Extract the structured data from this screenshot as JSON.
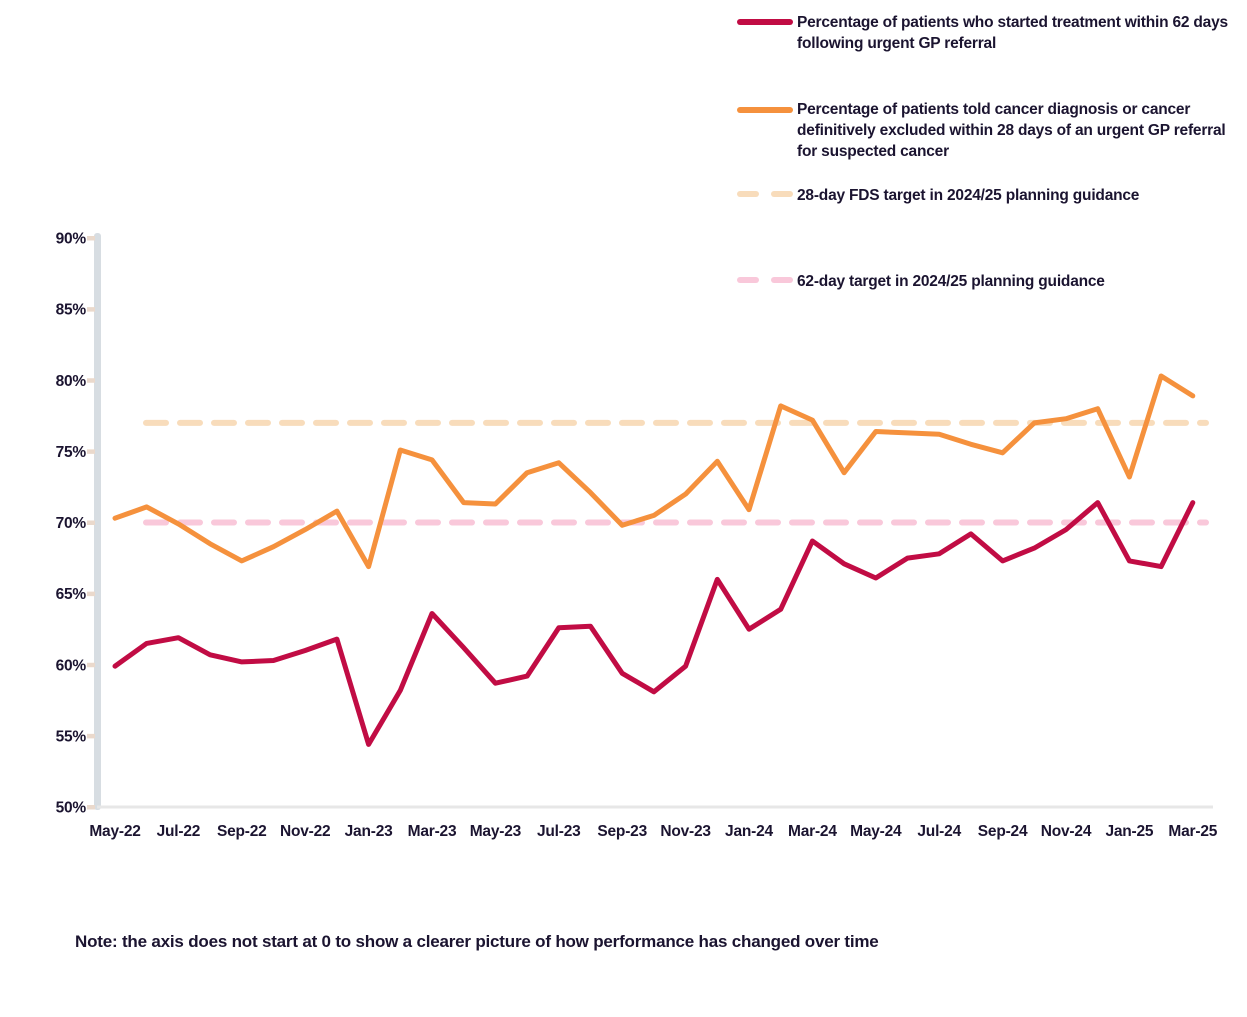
{
  "legend": {
    "items": [
      {
        "label": "Percentage of patients who started treatment within 62 days following urgent GP referral",
        "color": "#c10c44",
        "style": "solid"
      },
      {
        "label": "Percentage of patients told cancer diagnosis or cancer definitively excluded within 28 days of an urgent GP referral for suspected cancer",
        "color": "#f5913d",
        "style": "solid"
      },
      {
        "label": "28-day FDS target in 2024/25 planning guidance",
        "color": "#f8dcbb",
        "style": "dashed"
      },
      {
        "label": "62-day target in 2024/25 planning guidance",
        "color": "#f9c8da",
        "style": "dashed"
      }
    ]
  },
  "note": "Note: the axis does not start at 0 to show a clearer picture of how performance has changed over time",
  "chart_data": {
    "type": "line",
    "x": [
      "May-22",
      "Jun-22",
      "Jul-22",
      "Aug-22",
      "Sep-22",
      "Oct-22",
      "Nov-22",
      "Dec-22",
      "Jan-23",
      "Feb-23",
      "Mar-23",
      "Apr-23",
      "May-23",
      "Jun-23",
      "Jul-23",
      "Aug-23",
      "Sep-23",
      "Oct-23",
      "Nov-23",
      "Dec-23",
      "Jan-24",
      "Feb-24",
      "Mar-24",
      "Apr-24",
      "May-24",
      "Jun-24",
      "Jul-24",
      "Aug-24",
      "Sep-24",
      "Oct-24",
      "Nov-24",
      "Dec-24",
      "Jan-25",
      "Feb-25",
      "Mar-25"
    ],
    "x_tick_labels": [
      "May-22",
      "Jul-22",
      "Sep-22",
      "Nov-22",
      "Jan-23",
      "Mar-23",
      "May-23",
      "Jul-23",
      "Sep-23",
      "Nov-23",
      "Jan-24",
      "Mar-24",
      "May-24",
      "Jul-24",
      "Sep-24",
      "Nov-24",
      "Jan-25",
      "Mar-25"
    ],
    "series": [
      {
        "name": "Percentage of patients who started treatment within 62 days following urgent GP referral",
        "color": "#c10c44",
        "values": [
          59.9,
          61.5,
          61.9,
          60.7,
          60.2,
          60.3,
          61.0,
          61.8,
          54.4,
          58.2,
          63.6,
          61.2,
          58.7,
          59.2,
          62.6,
          62.7,
          59.4,
          58.1,
          59.9,
          66.0,
          62.5,
          63.9,
          68.7,
          67.1,
          66.1,
          67.5,
          67.8,
          69.2,
          67.3,
          68.2,
          69.5,
          71.4,
          67.3,
          66.9,
          71.4
        ]
      },
      {
        "name": "Percentage of patients told cancer diagnosis or cancer definitively excluded within 28 days of an urgent GP referral for suspected cancer",
        "color": "#f5913d",
        "values": [
          70.3,
          71.1,
          69.9,
          68.5,
          67.3,
          68.3,
          69.5,
          70.8,
          66.9,
          75.1,
          74.4,
          71.4,
          71.3,
          73.5,
          74.2,
          72.1,
          69.8,
          70.5,
          72.0,
          74.3,
          70.9,
          78.2,
          77.2,
          73.5,
          76.4,
          76.3,
          76.2,
          75.5,
          74.9,
          77.0,
          77.3,
          78.0,
          73.2,
          80.3,
          78.9
        ]
      }
    ],
    "reference_lines": [
      {
        "name": "28-day FDS target in 2024/25 planning guidance",
        "value": 77,
        "color": "#f8dcbb"
      },
      {
        "name": "62-day target in 2024/25 planning guidance",
        "value": 70,
        "color": "#f9c8da"
      }
    ],
    "ylim": [
      50,
      90
    ],
    "y_ticks": [
      "50%",
      "55%",
      "60%",
      "65%",
      "70%",
      "75%",
      "80%",
      "85%",
      "90%"
    ],
    "grid": false,
    "legend_position": "top-right"
  }
}
